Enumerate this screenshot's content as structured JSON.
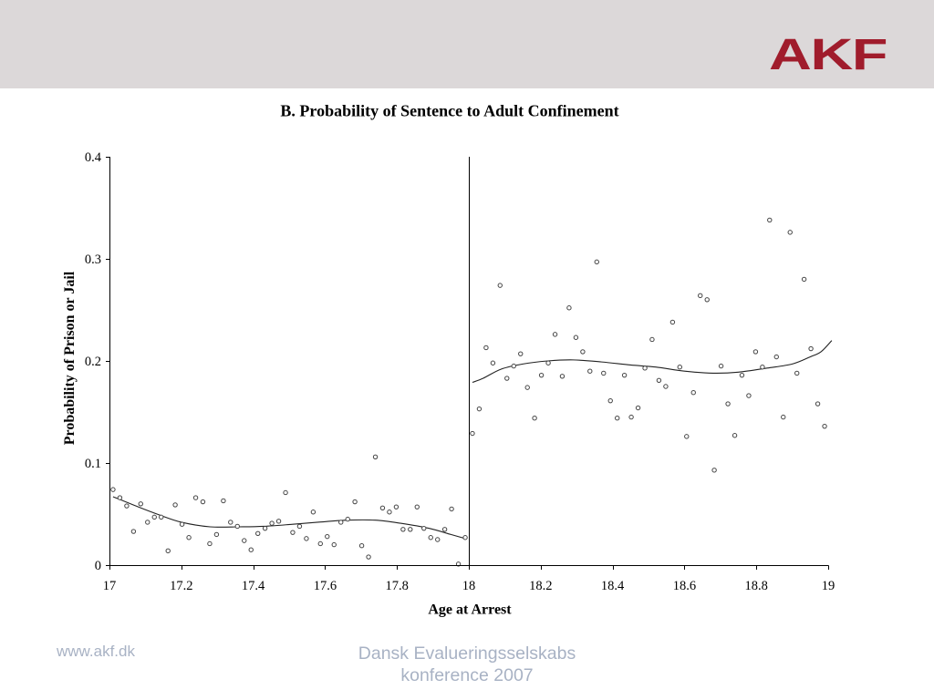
{
  "header": {
    "logo_text": "AKF"
  },
  "footer": {
    "url": "www.akf.dk",
    "conference_line1": "Dansk Evalueringsselskabs",
    "conference_line2": "konference 2007"
  },
  "colors": {
    "header_band": "#dcd8d9",
    "logo": "#a01c2c",
    "footer_text": "#a8b2c4",
    "axis": "#000000",
    "marker_edge": "#444444",
    "fitted_curve": "#222222"
  },
  "chart_data": {
    "type": "scatter",
    "title": "B. Probability of Sentence to Adult Confinement",
    "xlabel": "Age at Arrest",
    "ylabel": "Probability of Prison or Jail",
    "xlim": [
      17,
      19
    ],
    "ylim": [
      0,
      0.4
    ],
    "x_ticks": [
      17,
      17.2,
      17.4,
      17.6,
      17.8,
      18,
      18.2,
      18.4,
      18.6,
      18.8,
      19
    ],
    "y_ticks": [
      0,
      0.1,
      0.2,
      0.3,
      0.4
    ],
    "cutoff_x": 18,
    "grid": false,
    "legend": "none",
    "series": [
      {
        "x": [
          17.01,
          17.029,
          17.048,
          17.067,
          17.087,
          17.106,
          17.125,
          17.144,
          17.163,
          17.183,
          17.202,
          17.221,
          17.24,
          17.26,
          17.279,
          17.298,
          17.317,
          17.337,
          17.356,
          17.375,
          17.394,
          17.413,
          17.433,
          17.452,
          17.471,
          17.49,
          17.51,
          17.529,
          17.548,
          17.567,
          17.587,
          17.606,
          17.625,
          17.644,
          17.663,
          17.683,
          17.702,
          17.721,
          17.74,
          17.76,
          17.779,
          17.798,
          17.817,
          17.837,
          17.856,
          17.875,
          17.894,
          17.913,
          17.933,
          17.952,
          17.971,
          17.99
        ],
        "y": [
          0.074,
          0.066,
          0.058,
          0.033,
          0.06,
          0.042,
          0.047,
          0.047,
          0.014,
          0.059,
          0.04,
          0.027,
          0.066,
          0.062,
          0.021,
          0.03,
          0.063,
          0.042,
          0.038,
          0.024,
          0.015,
          0.031,
          0.036,
          0.041,
          0.043,
          0.071,
          0.032,
          0.038,
          0.026,
          0.052,
          0.021,
          0.028,
          0.02,
          0.042,
          0.045,
          0.062,
          0.019,
          0.008,
          0.106,
          0.056,
          0.052,
          0.057,
          0.035,
          0.035,
          0.057,
          0.036,
          0.027,
          0.025,
          0.035,
          0.055,
          0.001,
          0.027
        ]
      },
      {
        "x": [
          18.01,
          18.029,
          18.048,
          18.067,
          18.087,
          18.106,
          18.125,
          18.144,
          18.163,
          18.183,
          18.202,
          18.221,
          18.24,
          18.26,
          18.279,
          18.298,
          18.317,
          18.337,
          18.356,
          18.375,
          18.394,
          18.413,
          18.433,
          18.452,
          18.471,
          18.49,
          18.51,
          18.529,
          18.548,
          18.567,
          18.587,
          18.606,
          18.625,
          18.644,
          18.663,
          18.683,
          18.702,
          18.721,
          18.74,
          18.76,
          18.779,
          18.798,
          18.817,
          18.837,
          18.856,
          18.875,
          18.894,
          18.913,
          18.933,
          18.952,
          18.971,
          18.99
        ],
        "y": [
          0.129,
          0.153,
          0.213,
          0.198,
          0.274,
          0.183,
          0.195,
          0.207,
          0.174,
          0.144,
          0.186,
          0.198,
          0.226,
          0.185,
          0.252,
          0.223,
          0.209,
          0.19,
          0.297,
          0.188,
          0.161,
          0.144,
          0.186,
          0.145,
          0.154,
          0.193,
          0.221,
          0.181,
          0.175,
          0.238,
          0.194,
          0.126,
          0.169,
          0.264,
          0.26,
          0.093,
          0.195,
          0.158,
          0.127,
          0.186,
          0.166,
          0.209,
          0.194,
          0.338,
          0.204,
          0.145,
          0.326,
          0.188,
          0.28,
          0.212,
          0.158,
          0.136
        ]
      }
    ],
    "fitted_curves": [
      {
        "x": [
          17.01,
          17.08,
          17.14,
          17.2,
          17.28,
          17.36,
          17.43,
          17.51,
          17.58,
          17.66,
          17.74,
          17.81,
          17.89,
          17.95,
          17.99
        ],
        "y": [
          0.067,
          0.057,
          0.049,
          0.042,
          0.0375,
          0.0375,
          0.038,
          0.04,
          0.042,
          0.044,
          0.044,
          0.041,
          0.036,
          0.03,
          0.026
        ]
      },
      {
        "x": [
          18.01,
          18.04,
          18.09,
          18.15,
          18.22,
          18.29,
          18.37,
          18.45,
          18.52,
          18.6,
          18.68,
          18.75,
          18.83,
          18.9,
          18.95,
          18.98,
          19.01
        ],
        "y": [
          0.179,
          0.183,
          0.192,
          0.197,
          0.2,
          0.201,
          0.199,
          0.196,
          0.194,
          0.19,
          0.188,
          0.189,
          0.193,
          0.197,
          0.204,
          0.209,
          0.22
        ]
      }
    ]
  }
}
